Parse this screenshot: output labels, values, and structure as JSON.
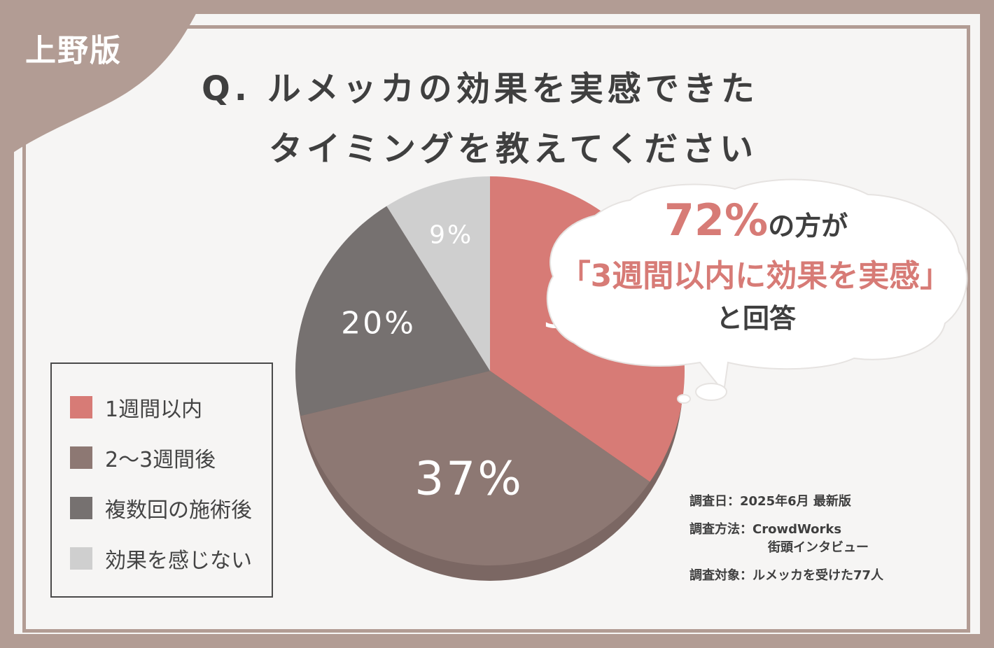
{
  "corner_tag": {
    "label": "上野版"
  },
  "title": {
    "line1": "Q. ルメッカの効果を実感できた",
    "line2": "タイミングを教えてください"
  },
  "callout": {
    "highlight": "72%",
    "suffix": "の方が",
    "quote": "「3週間以内に効果を実感」",
    "tail": "と回答"
  },
  "survey": {
    "date": "調査日：2025年6月 最新版",
    "method_line1": "調査方法：CrowdWorks",
    "method_line2": "街頭インタビュー",
    "target": "調査対象：ルメッカを受けた77人"
  },
  "colors": {
    "slice1": "#d77b76",
    "slice2": "#8d7873",
    "slice3": "#767170",
    "slice4": "#cfcfcf",
    "frame": "#b29c94"
  },
  "chart_data": {
    "type": "pie",
    "categories": [
      "1週間以内",
      "2～3週間後",
      "複数回の施術後",
      "効果を感じない"
    ],
    "values": [
      35,
      37,
      20,
      9
    ],
    "labels": [
      "35%",
      "37%",
      "20%",
      "9%"
    ],
    "legend": "left"
  }
}
